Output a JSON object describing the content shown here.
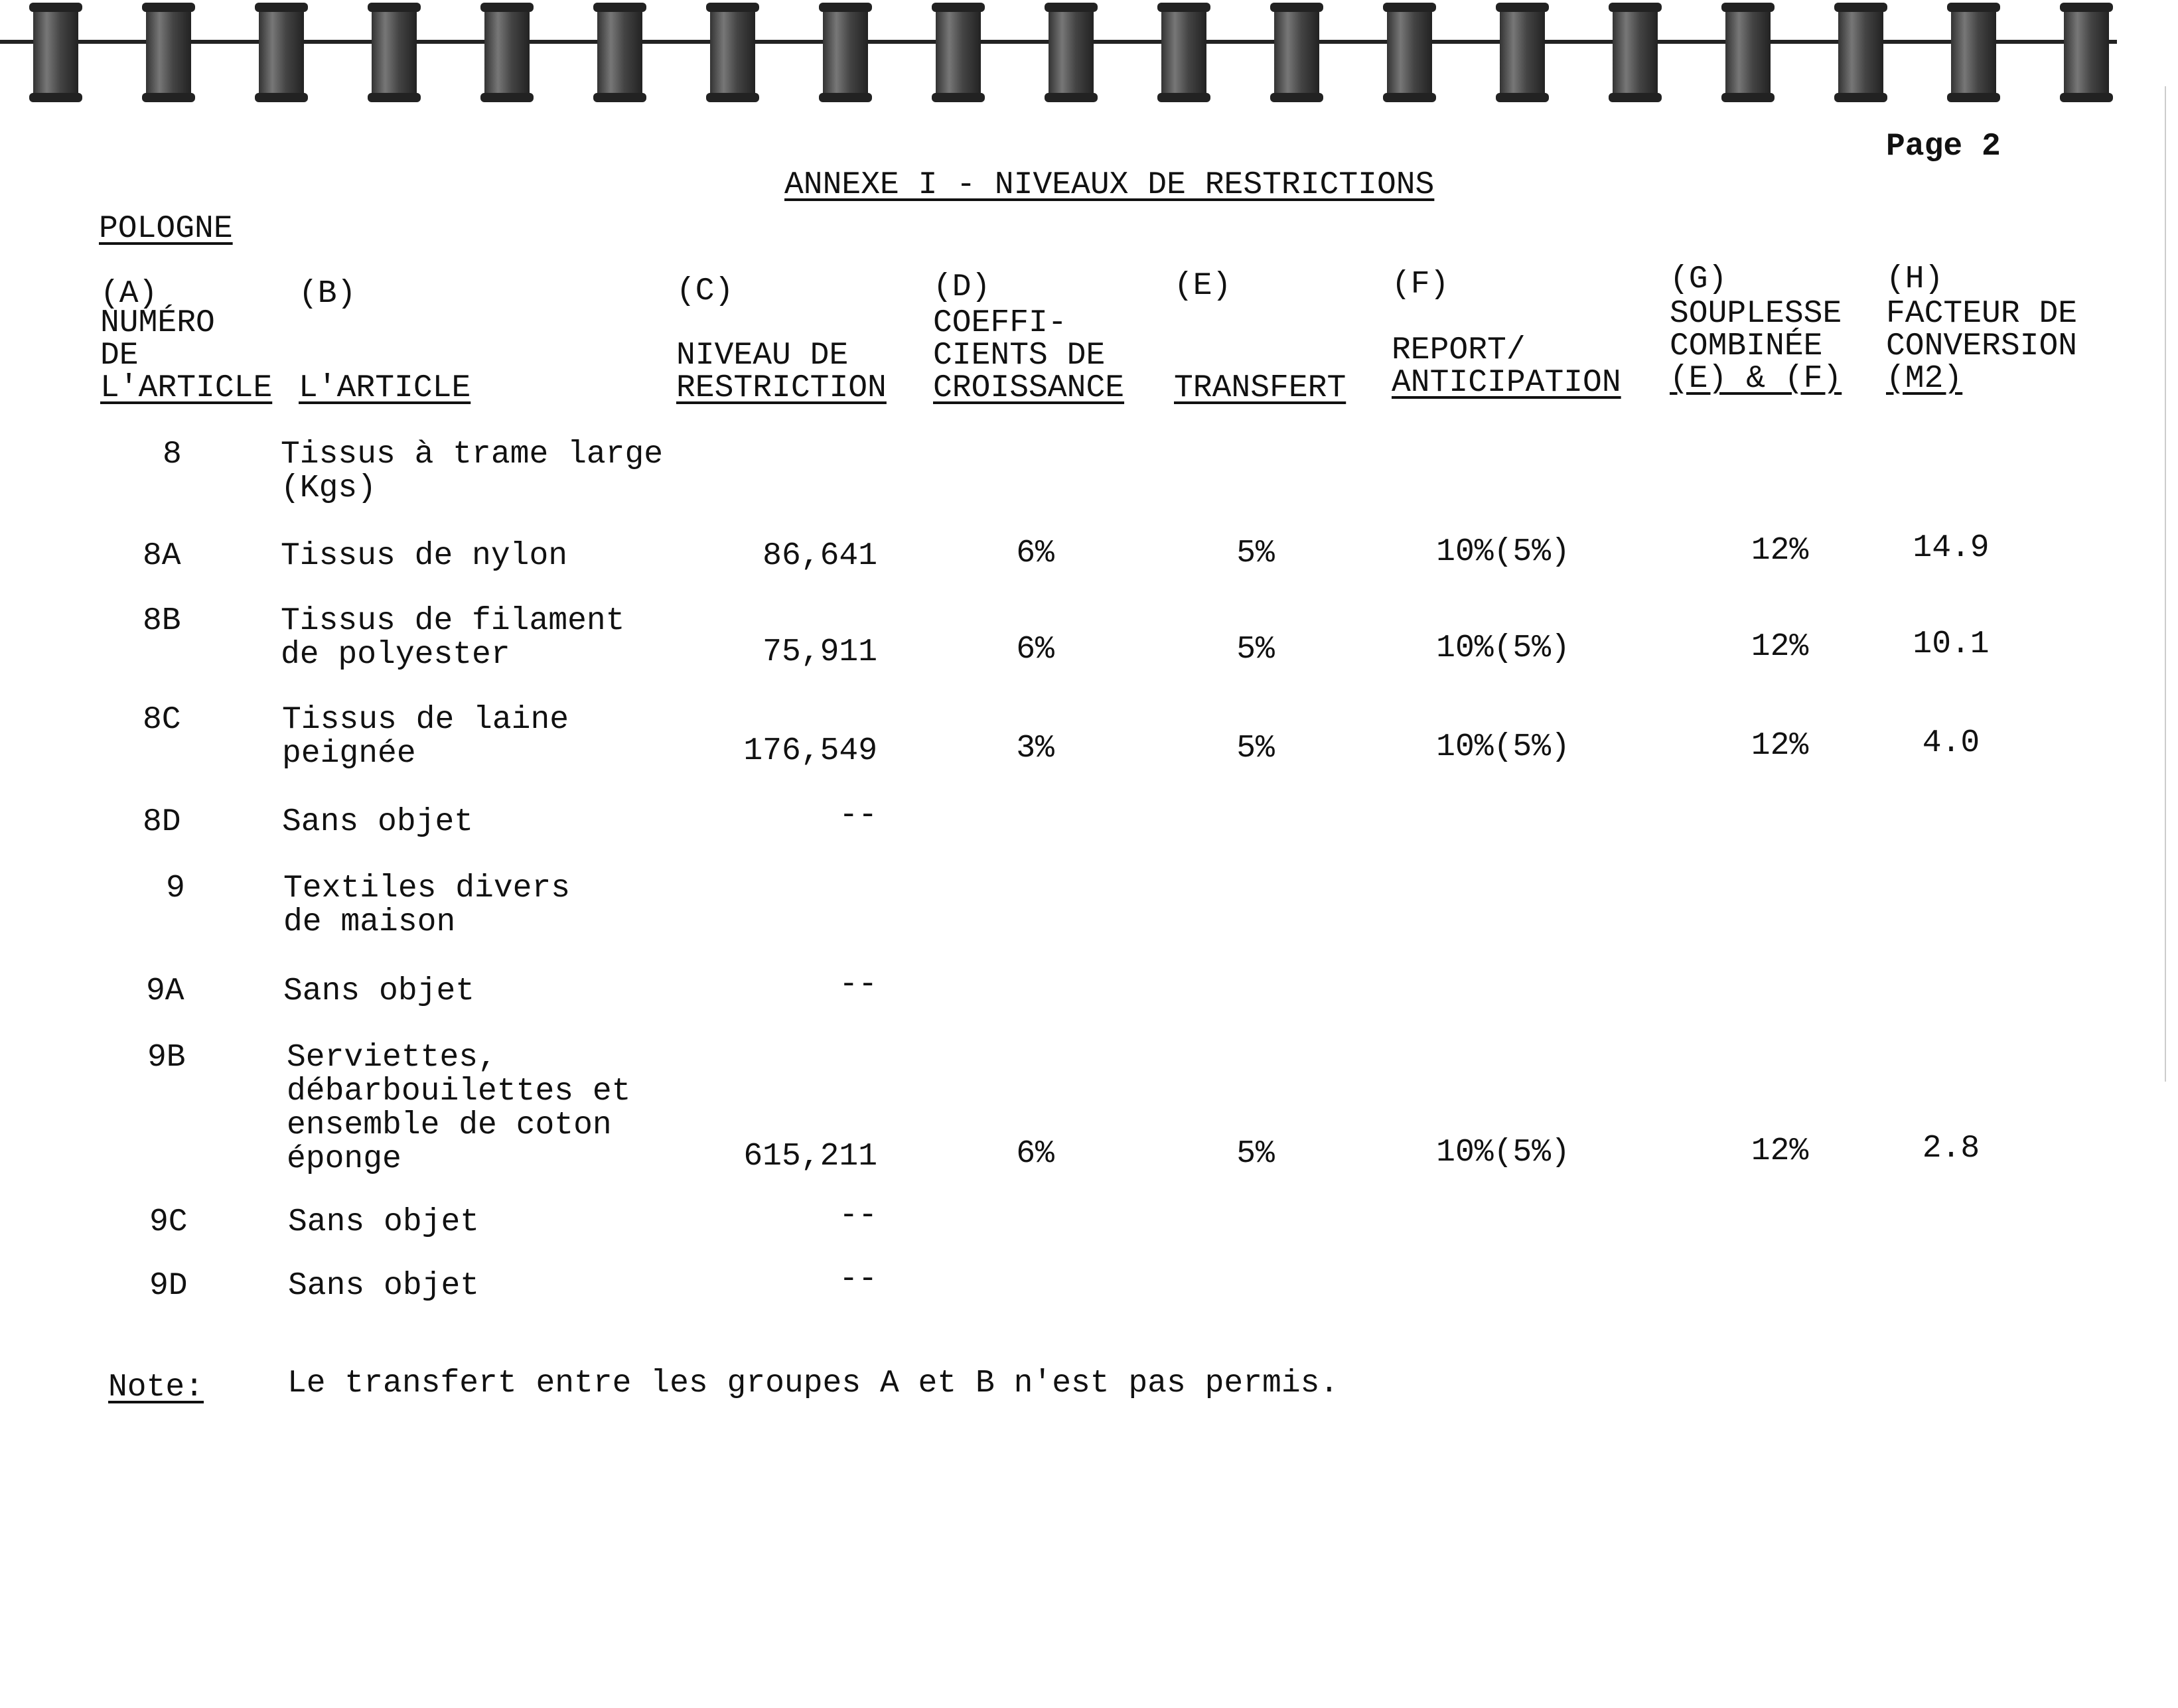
{
  "page_label": "Page 2",
  "title": "ANNEXE I - NIVEAUX DE RESTRICTIONS",
  "country": "POLOGNE",
  "columns": [
    {
      "letter": "(A)",
      "lines": [
        "NUMÉRO",
        "DE",
        "L'ARTICLE"
      ]
    },
    {
      "letter": "(B)",
      "lines": [
        "L'ARTICLE"
      ]
    },
    {
      "letter": "(C)",
      "lines": [
        "NIVEAU DE",
        "RESTRICTION"
      ]
    },
    {
      "letter": "(D)",
      "lines": [
        "COEFFI-",
        "CIENTS DE",
        "CROISSANCE"
      ]
    },
    {
      "letter": "(E)",
      "lines": [
        "TRANSFERT"
      ]
    },
    {
      "letter": "(F)",
      "lines": [
        "REPORT/",
        "ANTICIPATION"
      ]
    },
    {
      "letter": "(G)",
      "lines": [
        "SOUPLESSE",
        "COMBINÉE",
        "(E) & (F)"
      ]
    },
    {
      "letter": "(H)",
      "lines": [
        "FACTEUR DE",
        "CONVERSION",
        "(M2)"
      ]
    }
  ],
  "rows": [
    {
      "number": "8",
      "description": [
        "Tissus à trame large",
        "(Kgs)"
      ]
    },
    {
      "number": "8A",
      "description": [
        "Tissus de nylon"
      ],
      "restriction": "86,641",
      "growth": "6%",
      "transfer": "5%",
      "carry": "10%(5%)",
      "flex": "12%",
      "conversion": "14.9"
    },
    {
      "number": "8B",
      "description": [
        "Tissus de filament",
        "de polyester"
      ],
      "restriction": "75,911",
      "growth": "6%",
      "transfer": "5%",
      "carry": "10%(5%)",
      "flex": "12%",
      "conversion": "10.1"
    },
    {
      "number": "8C",
      "description": [
        "Tissus de laine",
        "peignée"
      ],
      "restriction": "176,549",
      "growth": "3%",
      "transfer": "5%",
      "carry": "10%(5%)",
      "flex": "12%",
      "conversion": "4.0"
    },
    {
      "number": "8D",
      "description": [
        "Sans objet"
      ],
      "restriction": "--"
    },
    {
      "number": "9",
      "description": [
        "Textiles divers",
        "de maison"
      ]
    },
    {
      "number": "9A",
      "description": [
        "Sans objet"
      ],
      "restriction": "--"
    },
    {
      "number": "9B",
      "description": [
        "Serviettes,",
        "débarbouilettes et",
        "ensemble de coton",
        "éponge"
      ],
      "restriction": "615,211",
      "growth": "6%",
      "transfer": "5%",
      "carry": "10%(5%)",
      "flex": "12%",
      "conversion": "2.8"
    },
    {
      "number": "9C",
      "description": [
        "Sans objet"
      ],
      "restriction": "--"
    },
    {
      "number": "9D",
      "description": [
        "Sans objet"
      ],
      "restriction": "--"
    }
  ],
  "note": {
    "label": "Note:",
    "text": "Le transfert entre les groupes A et B n'est pas permis."
  }
}
